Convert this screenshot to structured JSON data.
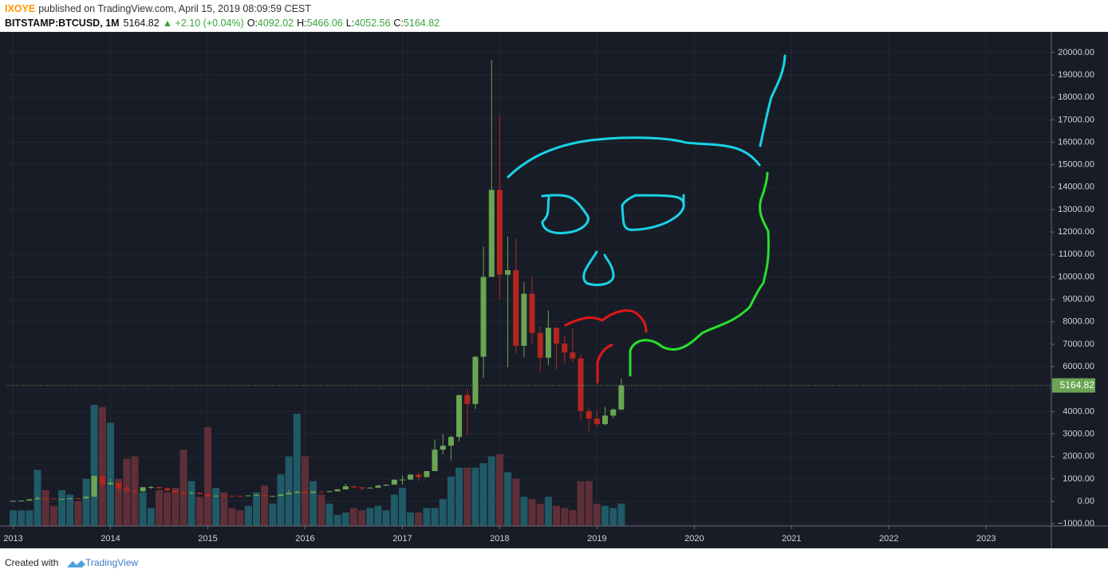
{
  "header": {
    "author": "IXOYE",
    "published": "published on TradingView.com, April 15, 2019 08:09:59 CEST",
    "symbol": "BITSTAMP:BTCUSD, 1M",
    "price": "5164.82",
    "change": "▲ +2.10 (+0.04%)",
    "o_label": "O:",
    "open": "4092.02",
    "h_label": "H:",
    "high": "5466.06",
    "l_label": "L:",
    "low": "4052.56",
    "c_label": "C:",
    "close": "5164.82"
  },
  "chart_data": {
    "type": "candlestick",
    "x": [
      2013.0,
      2013.083,
      2013.167,
      2013.25,
      2013.333,
      2013.417,
      2013.5,
      2013.583,
      2013.667,
      2013.75,
      2013.833,
      2013.917,
      2014.0,
      2014.083,
      2014.167,
      2014.25,
      2014.333,
      2014.417,
      2014.5,
      2014.583,
      2014.667,
      2014.75,
      2014.833,
      2014.917,
      2015.0,
      2015.083,
      2015.167,
      2015.25,
      2015.333,
      2015.417,
      2015.5,
      2015.583,
      2015.667,
      2015.75,
      2015.833,
      2015.917,
      2016.0,
      2016.083,
      2016.167,
      2016.25,
      2016.333,
      2016.417,
      2016.5,
      2016.583,
      2016.667,
      2016.75,
      2016.833,
      2016.917,
      2017.0,
      2017.083,
      2017.167,
      2017.25,
      2017.333,
      2017.417,
      2017.5,
      2017.583,
      2017.667,
      2017.75,
      2017.833,
      2017.917,
      2018.0,
      2018.083,
      2018.167,
      2018.25,
      2018.333,
      2018.417,
      2018.5,
      2018.583,
      2018.667,
      2018.75,
      2018.833,
      2018.917,
      2019.0,
      2019.083,
      2019.167,
      2019.25
    ],
    "open": [
      13,
      20,
      33,
      93,
      139,
      128,
      97,
      106,
      135,
      133,
      204,
      1128,
      754,
      825,
      573,
      457,
      447,
      627,
      637,
      584,
      480,
      388,
      338,
      378,
      320,
      217,
      254,
      244,
      236,
      230,
      264,
      284,
      230,
      236,
      311,
      378,
      430,
      369,
      437,
      416,
      448,
      531,
      673,
      624,
      573,
      609,
      698,
      742,
      964,
      970,
      1190,
      1080,
      1348,
      2300,
      2480,
      2870,
      4735,
      4340,
      6440,
      10000,
      13880,
      10100,
      10300,
      6930,
      9250,
      7500,
      6400,
      7730,
      7030,
      6630,
      6370,
      4020,
      3690,
      3440,
      3820,
      4092.02
    ],
    "high": [
      20,
      33,
      93,
      266,
      140,
      129,
      110,
      135,
      143,
      210,
      1163,
      1150,
      1000,
      850,
      720,
      540,
      630,
      680,
      650,
      600,
      500,
      420,
      460,
      390,
      320,
      265,
      300,
      262,
      247,
      267,
      315,
      285,
      245,
      330,
      500,
      465,
      460,
      440,
      440,
      470,
      550,
      780,
      680,
      625,
      630,
      740,
      755,
      980,
      1150,
      1200,
      1300,
      1350,
      2760,
      3000,
      2920,
      4740,
      4980,
      6470,
      11350,
      19666,
      17200,
      11800,
      11700,
      9770,
      10000,
      7780,
      8500,
      7750,
      7400,
      7680,
      6550,
      4200,
      4070,
      4200,
      4140,
      5466.06
    ],
    "low": [
      13,
      20,
      33,
      50,
      79,
      88,
      66,
      101,
      85,
      102,
      198,
      522,
      740,
      400,
      450,
      340,
      420,
      555,
      565,
      440,
      375,
      290,
      315,
      300,
      165,
      210,
      235,
      214,
      228,
      220,
      255,
      200,
      225,
      235,
      310,
      350,
      350,
      365,
      400,
      415,
      440,
      530,
      570,
      480,
      570,
      605,
      690,
      740,
      750,
      935,
      890,
      1060,
      1340,
      2100,
      1830,
      2670,
      2970,
      4110,
      5500,
      10000,
      9000,
      5970,
      6600,
      6430,
      7030,
      5770,
      6070,
      5880,
      6130,
      6200,
      3650,
      3120,
      3350,
      3380,
      3700,
      4052.56
    ],
    "close": [
      20,
      33,
      93,
      139,
      128,
      97,
      106,
      135,
      133,
      204,
      1128,
      754,
      825,
      573,
      457,
      447,
      627,
      637,
      584,
      480,
      388,
      338,
      378,
      320,
      217,
      254,
      244,
      236,
      230,
      264,
      284,
      230,
      236,
      311,
      378,
      430,
      369,
      437,
      416,
      448,
      531,
      673,
      624,
      573,
      609,
      698,
      742,
      964,
      970,
      1190,
      1080,
      1348,
      2300,
      2480,
      2870,
      4735,
      4340,
      6440,
      10000,
      13880,
      10100,
      10300,
      6930,
      9250,
      7500,
      6400,
      7730,
      7030,
      6630,
      6370,
      4020,
      3690,
      3440,
      3820,
      4092.02,
      5164.82
    ],
    "volume": [
      -400,
      -400,
      -400,
      1400,
      500,
      -200,
      500,
      300,
      0,
      1000,
      4300,
      4200,
      3500,
      1000,
      1900,
      2000,
      400,
      -300,
      500,
      400,
      600,
      2300,
      900,
      200,
      3300,
      600,
      400,
      -300,
      -400,
      -200,
      400,
      700,
      -100,
      1200,
      2000,
      3900,
      2000,
      900,
      300,
      -100,
      -600,
      -500,
      -300,
      -400,
      -300,
      -200,
      -400,
      300,
      600,
      -500,
      -500,
      -300,
      -300,
      100,
      1100,
      1500,
      1500,
      1500,
      1700,
      2000,
      2100,
      1300,
      1000,
      200,
      100,
      -100,
      200,
      -200,
      -300,
      -400,
      900,
      900,
      -100,
      -200,
      -300,
      -100
    ],
    "up_color": "#6ba553",
    "down_color": "#b5261f",
    "volume_up_color": "#1f5a66",
    "volume_down_color": "#5e2f38",
    "xlim": [
      2012.93,
      2023.67
    ],
    "ylim": [
      -1100,
      20920
    ],
    "xticks": [
      2013,
      2014,
      2015,
      2016,
      2017,
      2018,
      2019,
      2020,
      2021,
      2022,
      2023
    ],
    "yticks": [
      {
        "value": 20000,
        "label": "20000.00"
      },
      {
        "value": 19000,
        "label": "19000.00"
      },
      {
        "value": 18000,
        "label": "18000.00"
      },
      {
        "value": 17000,
        "label": "17000.00"
      },
      {
        "value": 16000,
        "label": "16000.00"
      },
      {
        "value": 15000,
        "label": "15000.00"
      },
      {
        "value": 14000,
        "label": "14000.00"
      },
      {
        "value": 13000,
        "label": "13000.00"
      },
      {
        "value": 12000,
        "label": "12000.00"
      },
      {
        "value": 11000,
        "label": "11000.00"
      },
      {
        "value": 10000,
        "label": "10000.00"
      },
      {
        "value": 9000,
        "label": "9000.00"
      },
      {
        "value": 8000,
        "label": "8000.00"
      },
      {
        "value": 7000,
        "label": "7000.00"
      },
      {
        "value": 6000,
        "label": "6000.00"
      },
      {
        "value": 5000,
        "label": "5000.00"
      },
      {
        "value": 4000,
        "label": "4000.00"
      },
      {
        "value": 3000,
        "label": "3000.00"
      },
      {
        "value": 2000,
        "label": "2000.00"
      },
      {
        "value": 1000,
        "label": "1000.00"
      },
      {
        "value": 0,
        "label": "0.00"
      },
      {
        "value": -1000,
        "label": "−1000.00"
      }
    ],
    "last_price": 5164.82,
    "grid": true
  },
  "footer": {
    "created": "Created with",
    "brand": "TradingView"
  }
}
